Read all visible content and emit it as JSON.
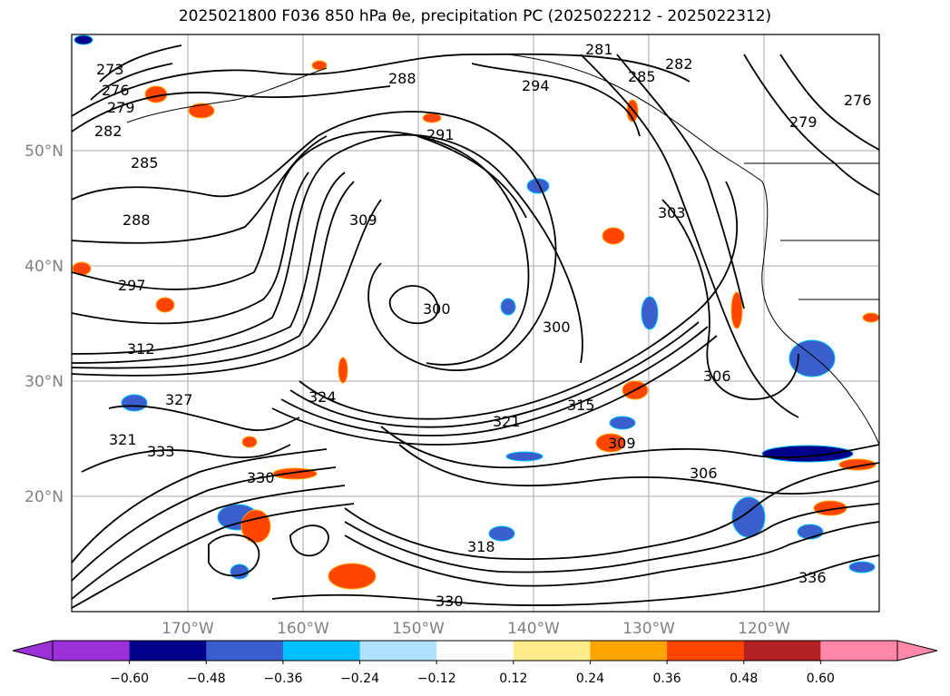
{
  "title": "2025021800 F036 850 hPa θe, precipitation PC (2025022212 - 2025022312)",
  "map": {
    "lon_labels": [
      "170°W",
      "160°W",
      "150°W",
      "140°W",
      "130°W",
      "120°W"
    ],
    "lat_labels": [
      "50°N",
      "40°N",
      "30°N",
      "20°N"
    ],
    "contour_labels": [
      "273",
      "276",
      "279",
      "282",
      "285",
      "288",
      "288",
      "291",
      "294",
      "297",
      "300",
      "300",
      "303",
      "306",
      "306",
      "309",
      "309",
      "312",
      "315",
      "318",
      "321",
      "321",
      "324",
      "327",
      "330",
      "330",
      "333",
      "336",
      "281",
      "282",
      "285",
      "276",
      "279"
    ]
  },
  "colorbar": {
    "ticks": [
      "−0.60",
      "−0.48",
      "−0.36",
      "−0.24",
      "−0.12",
      "0.12",
      "0.24",
      "0.36",
      "0.48",
      "0.60"
    ],
    "colors": [
      "#9b30d9",
      "#00008b",
      "#3a5fcd",
      "#00bfff",
      "#b0e2ff",
      "#ffffff",
      "#ffec8b",
      "#ffa500",
      "#ff4500",
      "#b22222",
      "#ff88aa"
    ]
  },
  "colors": {
    "grid": "#aaaaaa",
    "contour": "#000000",
    "tick_label": "#808080"
  }
}
